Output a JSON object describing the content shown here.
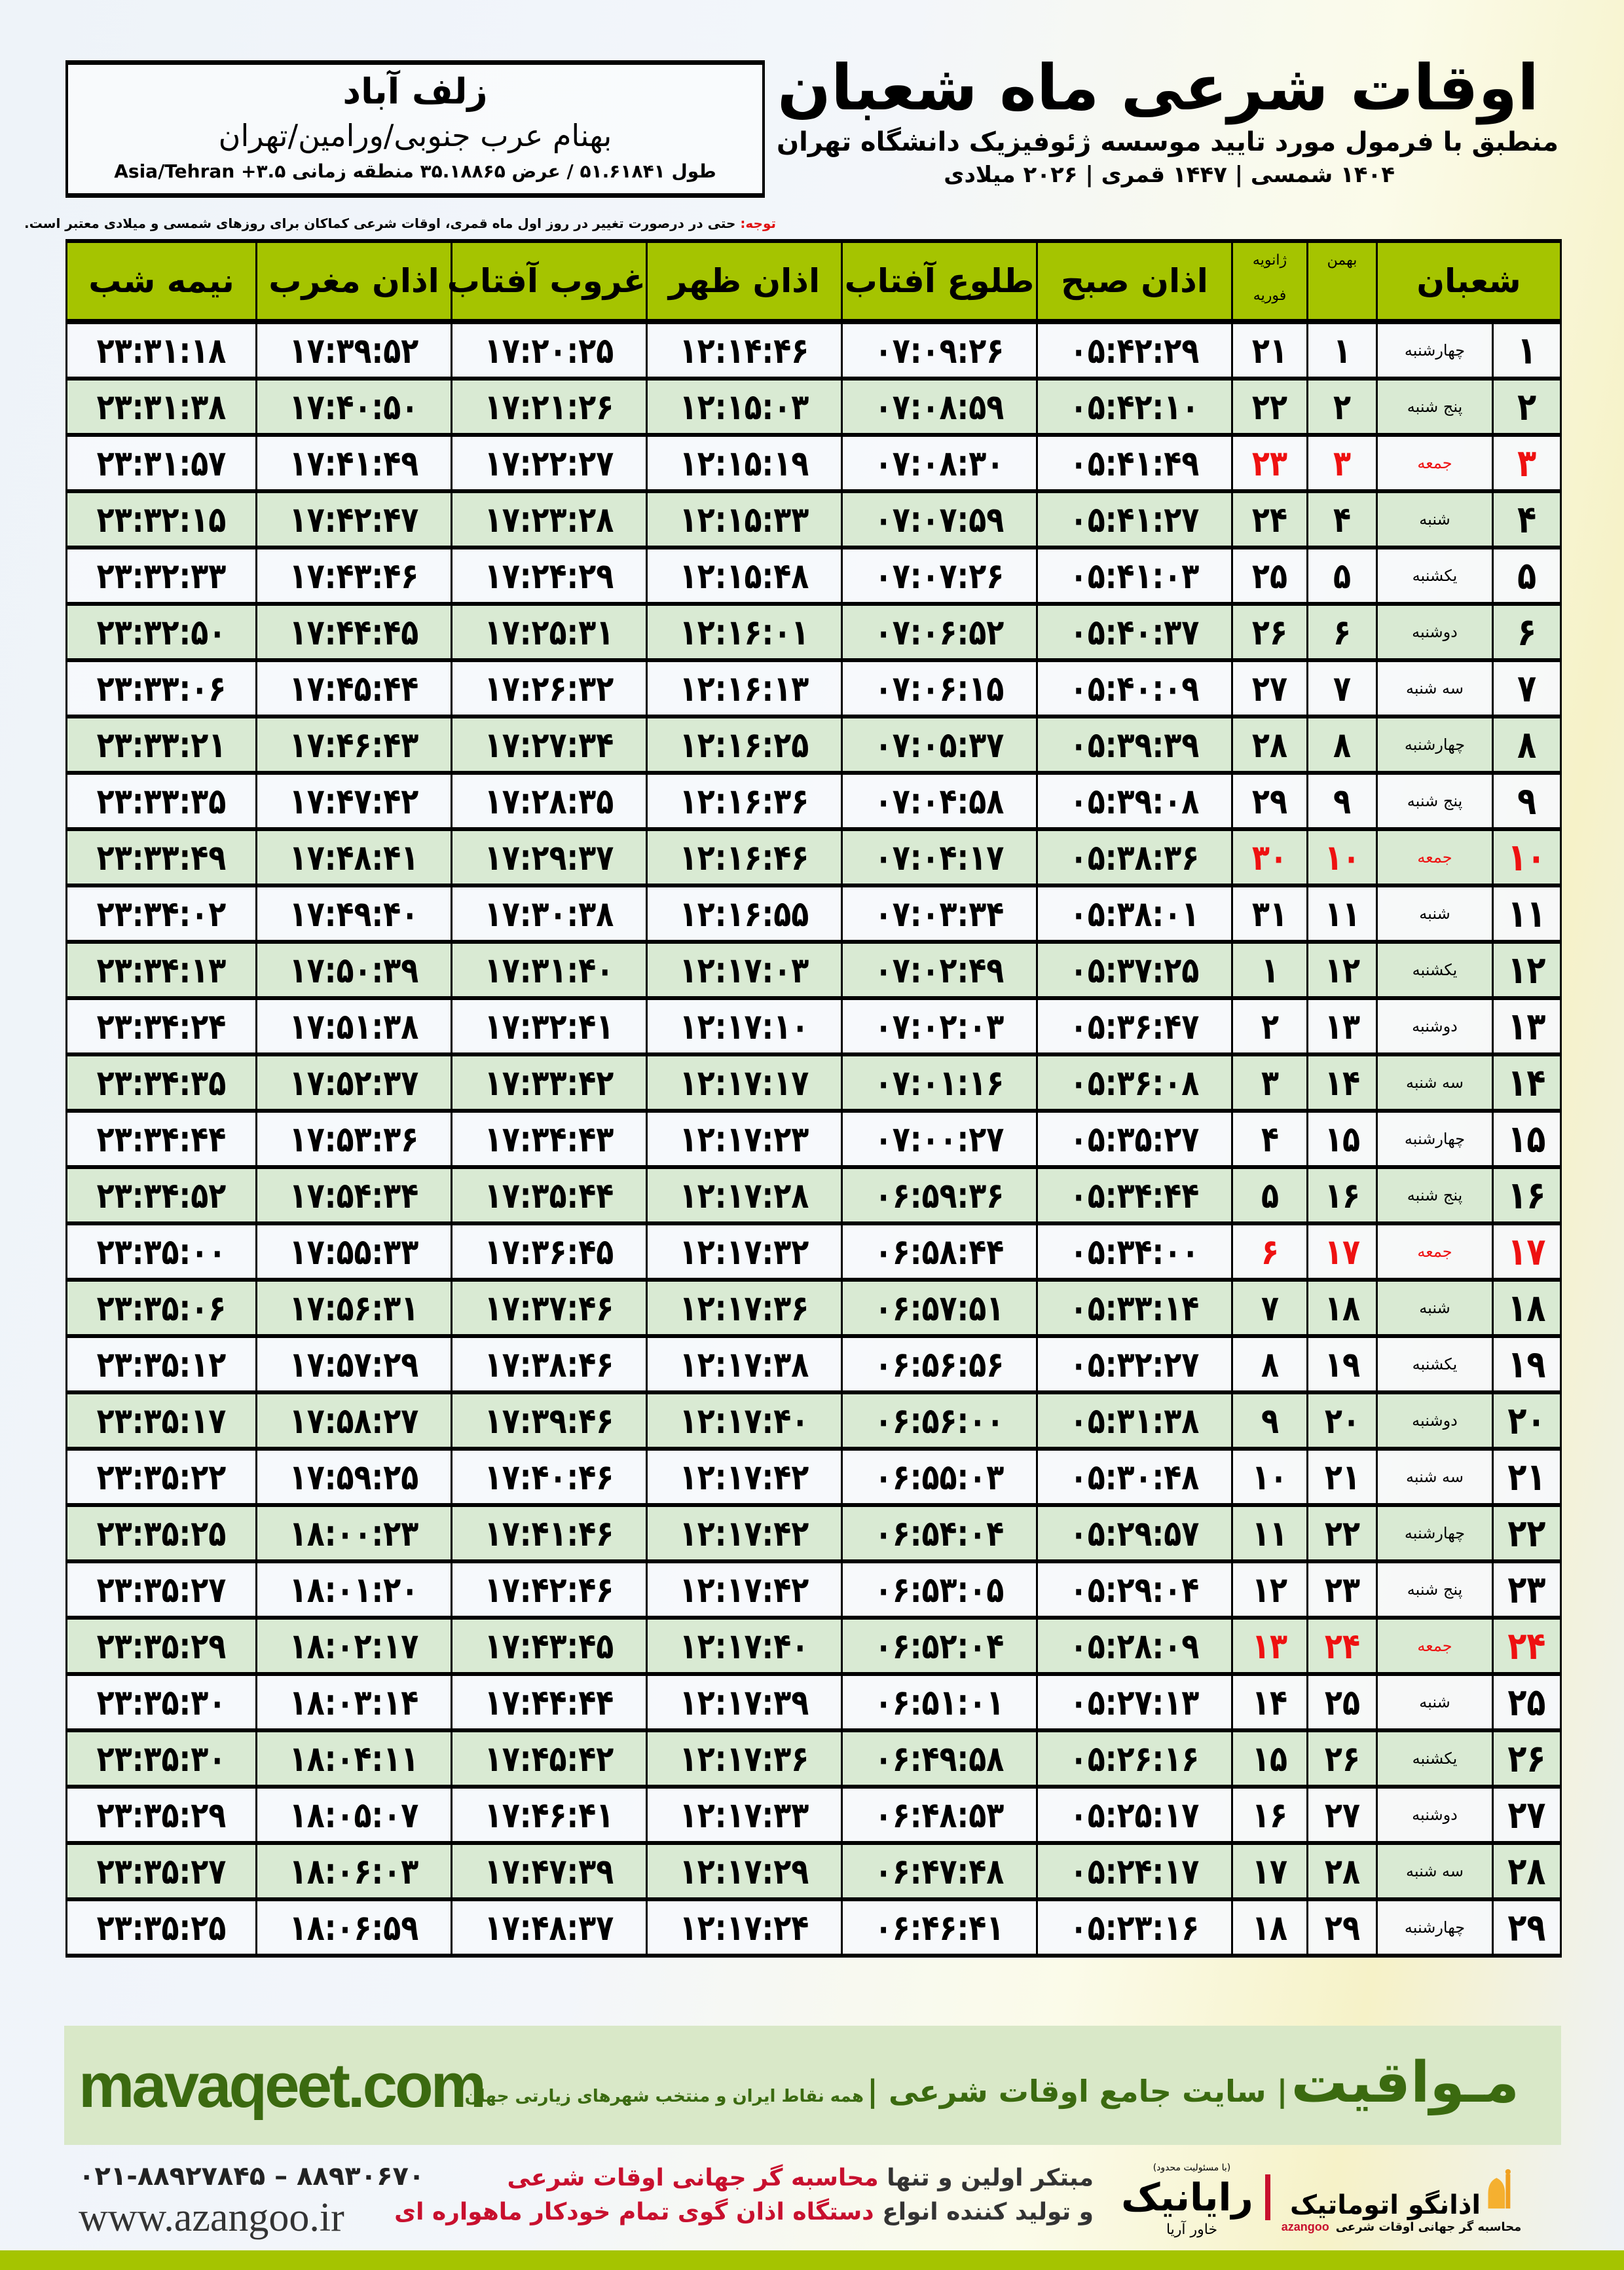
{
  "location": {
    "city": "زلف آباد",
    "region": "بهنام عرب جنوبی/ورامین/تهران",
    "coords": "طول ۵۱.۶۱۸۴۱ / عرض ۳۵.۱۸۸۶۵ منطقه زمانی ۳.۵+ Asia/Tehran"
  },
  "header": {
    "title": "اوقات شرعی ماه شعبان",
    "subtitle": "منطبق با فرمول مورد تایید موسسه ژئوفیزیک دانشگاه تهران",
    "dates": "۱۴۰۴ شمسی | ۱۴۴۷ قمری | ۲۰۲۶ میلادی"
  },
  "note": {
    "label": "توجه:",
    "text": " حتی در درصورت تغییر در روز اول ماه قمری، اوقات شرعی کماکان برای روزهای شمسی و میلادی معتبر است."
  },
  "table": {
    "headers": {
      "shaban": "شعبان",
      "bahman": "بهمن",
      "greg_top": "ژانویه",
      "greg_bottom": "فوریه",
      "fajr": "اذان صبح",
      "sunrise": "طلوع آفتاب",
      "dhuhr": "اذان ظهر",
      "sunset": "غروب آفتاب",
      "maghrib": "اذان مغرب",
      "midnight": "نیمه شب"
    },
    "friday_color": "#ee1111",
    "rows": [
      [
        "۱",
        "چهارشنبه",
        "۱",
        "۲۱",
        "۰۵:۴۲:۲۹",
        "۰۷:۰۹:۲۶",
        "۱۲:۱۴:۴۶",
        "۱۷:۲۰:۲۵",
        "۱۷:۳۹:۵۲",
        "۲۳:۳۱:۱۸"
      ],
      [
        "۲",
        "پنج شنبه",
        "۲",
        "۲۲",
        "۰۵:۴۲:۱۰",
        "۰۷:۰۸:۵۹",
        "۱۲:۱۵:۰۳",
        "۱۷:۲۱:۲۶",
        "۱۷:۴۰:۵۰",
        "۲۳:۳۱:۳۸"
      ],
      [
        "۳",
        "جمعه",
        "۳",
        "۲۳",
        "۰۵:۴۱:۴۹",
        "۰۷:۰۸:۳۰",
        "۱۲:۱۵:۱۹",
        "۱۷:۲۲:۲۷",
        "۱۷:۴۱:۴۹",
        "۲۳:۳۱:۵۷"
      ],
      [
        "۴",
        "شنبه",
        "۴",
        "۲۴",
        "۰۵:۴۱:۲۷",
        "۰۷:۰۷:۵۹",
        "۱۲:۱۵:۳۳",
        "۱۷:۲۳:۲۸",
        "۱۷:۴۲:۴۷",
        "۲۳:۳۲:۱۵"
      ],
      [
        "۵",
        "یکشنبه",
        "۵",
        "۲۵",
        "۰۵:۴۱:۰۳",
        "۰۷:۰۷:۲۶",
        "۱۲:۱۵:۴۸",
        "۱۷:۲۴:۲۹",
        "۱۷:۴۳:۴۶",
        "۲۳:۳۲:۳۳"
      ],
      [
        "۶",
        "دوشنبه",
        "۶",
        "۲۶",
        "۰۵:۴۰:۳۷",
        "۰۷:۰۶:۵۲",
        "۱۲:۱۶:۰۱",
        "۱۷:۲۵:۳۱",
        "۱۷:۴۴:۴۵",
        "۲۳:۳۲:۵۰"
      ],
      [
        "۷",
        "سه شنبه",
        "۷",
        "۲۷",
        "۰۵:۴۰:۰۹",
        "۰۷:۰۶:۱۵",
        "۱۲:۱۶:۱۳",
        "۱۷:۲۶:۳۲",
        "۱۷:۴۵:۴۴",
        "۲۳:۳۳:۰۶"
      ],
      [
        "۸",
        "چهارشنبه",
        "۸",
        "۲۸",
        "۰۵:۳۹:۳۹",
        "۰۷:۰۵:۳۷",
        "۱۲:۱۶:۲۵",
        "۱۷:۲۷:۳۴",
        "۱۷:۴۶:۴۳",
        "۲۳:۳۳:۲۱"
      ],
      [
        "۹",
        "پنج شنبه",
        "۹",
        "۲۹",
        "۰۵:۳۹:۰۸",
        "۰۷:۰۴:۵۸",
        "۱۲:۱۶:۳۶",
        "۱۷:۲۸:۳۵",
        "۱۷:۴۷:۴۲",
        "۲۳:۳۳:۳۵"
      ],
      [
        "۱۰",
        "جمعه",
        "۱۰",
        "۳۰",
        "۰۵:۳۸:۳۶",
        "۰۷:۰۴:۱۷",
        "۱۲:۱۶:۴۶",
        "۱۷:۲۹:۳۷",
        "۱۷:۴۸:۴۱",
        "۲۳:۳۳:۴۹"
      ],
      [
        "۱۱",
        "شنبه",
        "۱۱",
        "۳۱",
        "۰۵:۳۸:۰۱",
        "۰۷:۰۳:۳۴",
        "۱۲:۱۶:۵۵",
        "۱۷:۳۰:۳۸",
        "۱۷:۴۹:۴۰",
        "۲۳:۳۴:۰۲"
      ],
      [
        "۱۲",
        "یکشنبه",
        "۱۲",
        "۱",
        "۰۵:۳۷:۲۵",
        "۰۷:۰۲:۴۹",
        "۱۲:۱۷:۰۳",
        "۱۷:۳۱:۴۰",
        "۱۷:۵۰:۳۹",
        "۲۳:۳۴:۱۳"
      ],
      [
        "۱۳",
        "دوشنبه",
        "۱۳",
        "۲",
        "۰۵:۳۶:۴۷",
        "۰۷:۰۲:۰۳",
        "۱۲:۱۷:۱۰",
        "۱۷:۳۲:۴۱",
        "۱۷:۵۱:۳۸",
        "۲۳:۳۴:۲۴"
      ],
      [
        "۱۴",
        "سه شنبه",
        "۱۴",
        "۳",
        "۰۵:۳۶:۰۸",
        "۰۷:۰۱:۱۶",
        "۱۲:۱۷:۱۷",
        "۱۷:۳۳:۴۲",
        "۱۷:۵۲:۳۷",
        "۲۳:۳۴:۳۵"
      ],
      [
        "۱۵",
        "چهارشنبه",
        "۱۵",
        "۴",
        "۰۵:۳۵:۲۷",
        "۰۷:۰۰:۲۷",
        "۱۲:۱۷:۲۳",
        "۱۷:۳۴:۴۳",
        "۱۷:۵۳:۳۶",
        "۲۳:۳۴:۴۴"
      ],
      [
        "۱۶",
        "پنج شنبه",
        "۱۶",
        "۵",
        "۰۵:۳۴:۴۴",
        "۰۶:۵۹:۳۶",
        "۱۲:۱۷:۲۸",
        "۱۷:۳۵:۴۴",
        "۱۷:۵۴:۳۴",
        "۲۳:۳۴:۵۲"
      ],
      [
        "۱۷",
        "جمعه",
        "۱۷",
        "۶",
        "۰۵:۳۴:۰۰",
        "۰۶:۵۸:۴۴",
        "۱۲:۱۷:۳۲",
        "۱۷:۳۶:۴۵",
        "۱۷:۵۵:۳۳",
        "۲۳:۳۵:۰۰"
      ],
      [
        "۱۸",
        "شنبه",
        "۱۸",
        "۷",
        "۰۵:۳۳:۱۴",
        "۰۶:۵۷:۵۱",
        "۱۲:۱۷:۳۶",
        "۱۷:۳۷:۴۶",
        "۱۷:۵۶:۳۱",
        "۲۳:۳۵:۰۶"
      ],
      [
        "۱۹",
        "یکشنبه",
        "۱۹",
        "۸",
        "۰۵:۳۲:۲۷",
        "۰۶:۵۶:۵۶",
        "۱۲:۱۷:۳۸",
        "۱۷:۳۸:۴۶",
        "۱۷:۵۷:۲۹",
        "۲۳:۳۵:۱۲"
      ],
      [
        "۲۰",
        "دوشنبه",
        "۲۰",
        "۹",
        "۰۵:۳۱:۳۸",
        "۰۶:۵۶:۰۰",
        "۱۲:۱۷:۴۰",
        "۱۷:۳۹:۴۶",
        "۱۷:۵۸:۲۷",
        "۲۳:۳۵:۱۷"
      ],
      [
        "۲۱",
        "سه شنبه",
        "۲۱",
        "۱۰",
        "۰۵:۳۰:۴۸",
        "۰۶:۵۵:۰۳",
        "۱۲:۱۷:۴۲",
        "۱۷:۴۰:۴۶",
        "۱۷:۵۹:۲۵",
        "۲۳:۳۵:۲۲"
      ],
      [
        "۲۲",
        "چهارشنبه",
        "۲۲",
        "۱۱",
        "۰۵:۲۹:۵۷",
        "۰۶:۵۴:۰۴",
        "۱۲:۱۷:۴۲",
        "۱۷:۴۱:۴۶",
        "۱۸:۰۰:۲۳",
        "۲۳:۳۵:۲۵"
      ],
      [
        "۲۳",
        "پنج شنبه",
        "۲۳",
        "۱۲",
        "۰۵:۲۹:۰۴",
        "۰۶:۵۳:۰۵",
        "۱۲:۱۷:۴۲",
        "۱۷:۴۲:۴۶",
        "۱۸:۰۱:۲۰",
        "۲۳:۳۵:۲۷"
      ],
      [
        "۲۴",
        "جمعه",
        "۲۴",
        "۱۳",
        "۰۵:۲۸:۰۹",
        "۰۶:۵۲:۰۴",
        "۱۲:۱۷:۴۰",
        "۱۷:۴۳:۴۵",
        "۱۸:۰۲:۱۷",
        "۲۳:۳۵:۲۹"
      ],
      [
        "۲۵",
        "شنبه",
        "۲۵",
        "۱۴",
        "۰۵:۲۷:۱۳",
        "۰۶:۵۱:۰۱",
        "۱۲:۱۷:۳۹",
        "۱۷:۴۴:۴۴",
        "۱۸:۰۳:۱۴",
        "۲۳:۳۵:۳۰"
      ],
      [
        "۲۶",
        "یکشنبه",
        "۲۶",
        "۱۵",
        "۰۵:۲۶:۱۶",
        "۰۶:۴۹:۵۸",
        "۱۲:۱۷:۳۶",
        "۱۷:۴۵:۴۲",
        "۱۸:۰۴:۱۱",
        "۲۳:۳۵:۳۰"
      ],
      [
        "۲۷",
        "دوشنبه",
        "۲۷",
        "۱۶",
        "۰۵:۲۵:۱۷",
        "۰۶:۴۸:۵۳",
        "۱۲:۱۷:۳۳",
        "۱۷:۴۶:۴۱",
        "۱۸:۰۵:۰۷",
        "۲۳:۳۵:۲۹"
      ],
      [
        "۲۸",
        "سه شنبه",
        "۲۸",
        "۱۷",
        "۰۵:۲۴:۱۷",
        "۰۶:۴۷:۴۸",
        "۱۲:۱۷:۲۹",
        "۱۷:۴۷:۳۹",
        "۱۸:۰۶:۰۳",
        "۲۳:۳۵:۲۷"
      ],
      [
        "۲۹",
        "چهارشنبه",
        "۲۹",
        "۱۸",
        "۰۵:۲۳:۱۶",
        "۰۶:۴۶:۴۱",
        "۱۲:۱۷:۲۴",
        "۱۷:۴۸:۳۷",
        "۱۸:۰۶:۵۹",
        "۲۳:۳۵:۲۵"
      ]
    ]
  },
  "banner": {
    "site": "mavaqeet.com",
    "brand": "مـواقیت",
    "tagline": "| سایت جامع اوقات شرعی |",
    "subtag": "همه نقاط ایران و منتخب شهرهای زیارتی جهان"
  },
  "footer": {
    "phone": "۰۲۱-۸۸۹۲۷۸۴۵ – ۸۸۹۳۰۶۷۰",
    "website": "www.azangoo.ir",
    "promo1a": "مبتکر اولین و تنها ",
    "promo1b": "محاسبه گر جهانی اوقات شرعی",
    "promo2a": "و تولید کننده انواع ",
    "promo2b": "دستگاه اذان گوی تمام خودکار ماهواره ای",
    "rayanik": "رایانیک",
    "rayanik_sub": "خاور آریا",
    "rayanik_note": "(با مسئولیت محدود)",
    "azangoo": "اذانگو اتوماتیک",
    "azangoo_sub": "محاسبه گر جهانی اوقات شرعی",
    "azangoo_latin": "azangoo"
  },
  "colors": {
    "header_green": "#a5c400",
    "row_green": "#d9ead3",
    "banner": "#d9e8c8",
    "banner_text": "#3b6a10",
    "red": "#ee1111"
  }
}
